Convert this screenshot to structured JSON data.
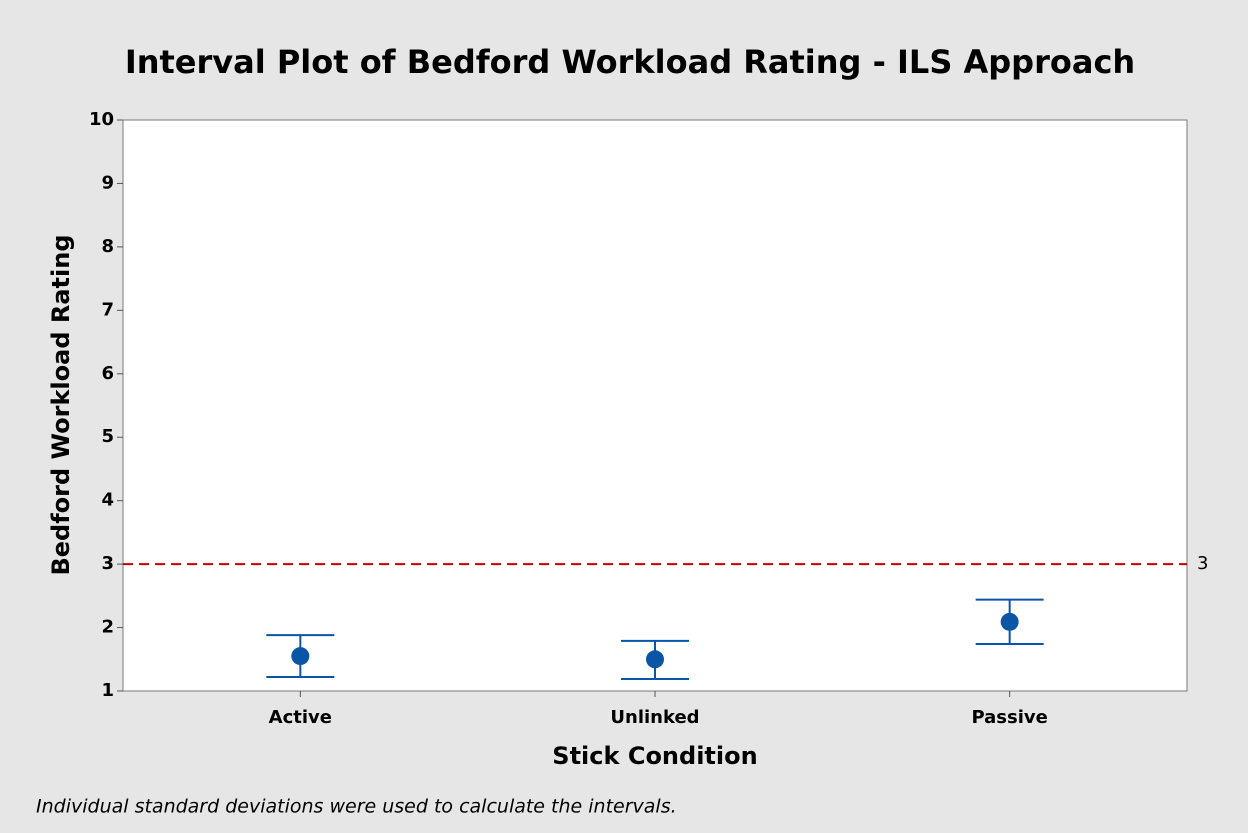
{
  "chart_data": {
    "type": "interval",
    "title": "Interval Plot of Bedford Workload Rating - ILS Approach",
    "x_label": "Stick Condition",
    "y_label": "Bedford Workload Rating",
    "footnote": "Individual standard deviations were used to calculate the intervals.",
    "categories": [
      "Active",
      "Unlinked",
      "Passive"
    ],
    "series": [
      {
        "color": "#0a55a5",
        "values": [
          1.55,
          1.5,
          2.09
        ],
        "lower": [
          1.22,
          1.19,
          1.74
        ],
        "upper": [
          1.88,
          1.79,
          2.44
        ]
      }
    ],
    "ylim": [
      1,
      10
    ],
    "yticks": [
      1,
      2,
      3,
      4,
      5,
      6,
      7,
      8,
      9,
      10
    ],
    "reference_line": {
      "value": 3,
      "color": "#c00000"
    }
  }
}
